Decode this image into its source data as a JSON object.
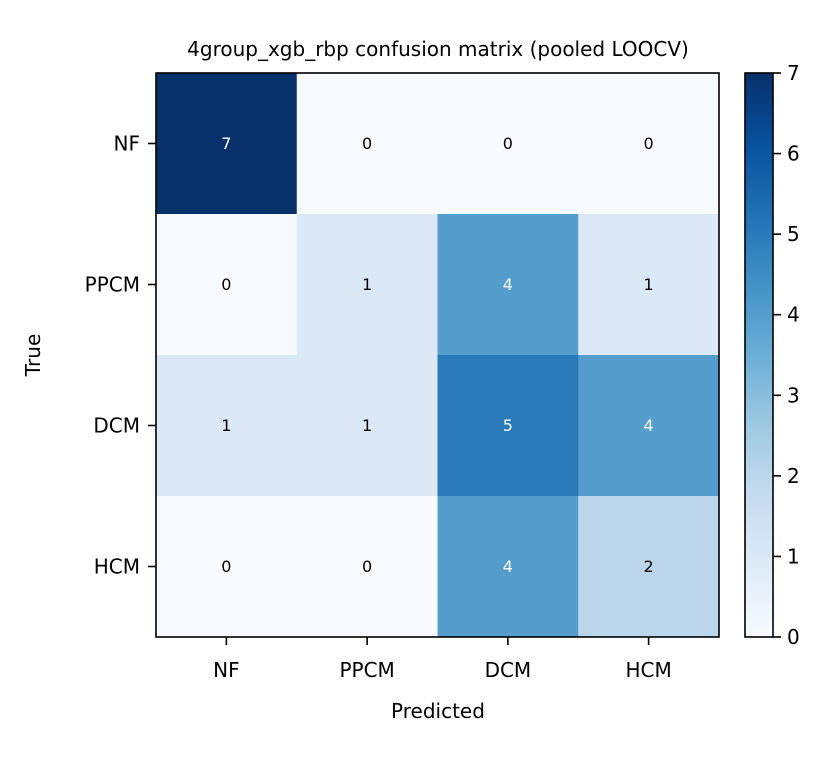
{
  "chart_data": {
    "type": "heatmap",
    "title": "4group_xgb_rbp confusion matrix (pooled LOOCV)",
    "xlabel": "Predicted",
    "ylabel": "True",
    "x_categories": [
      "NF",
      "PPCM",
      "DCM",
      "HCM"
    ],
    "y_categories": [
      "NF",
      "PPCM",
      "DCM",
      "HCM"
    ],
    "values": [
      [
        7,
        0,
        0,
        0
      ],
      [
        0,
        1,
        4,
        1
      ],
      [
        1,
        1,
        5,
        4
      ],
      [
        0,
        0,
        4,
        2
      ]
    ],
    "colorbar": {
      "min": 0,
      "max": 7,
      "ticks": [
        "0",
        "1",
        "2",
        "3",
        "4",
        "5",
        "6",
        "7"
      ]
    },
    "colormap": "Blues",
    "colormap_stops": [
      "#f7fbff",
      "#deebf7",
      "#c6dbef",
      "#9ecae1",
      "#6baed6",
      "#4292c6",
      "#2171b5",
      "#08519c",
      "#08306b"
    ],
    "cell_text_colors": {
      "dark": "#000000",
      "light": "#ffffff"
    }
  }
}
